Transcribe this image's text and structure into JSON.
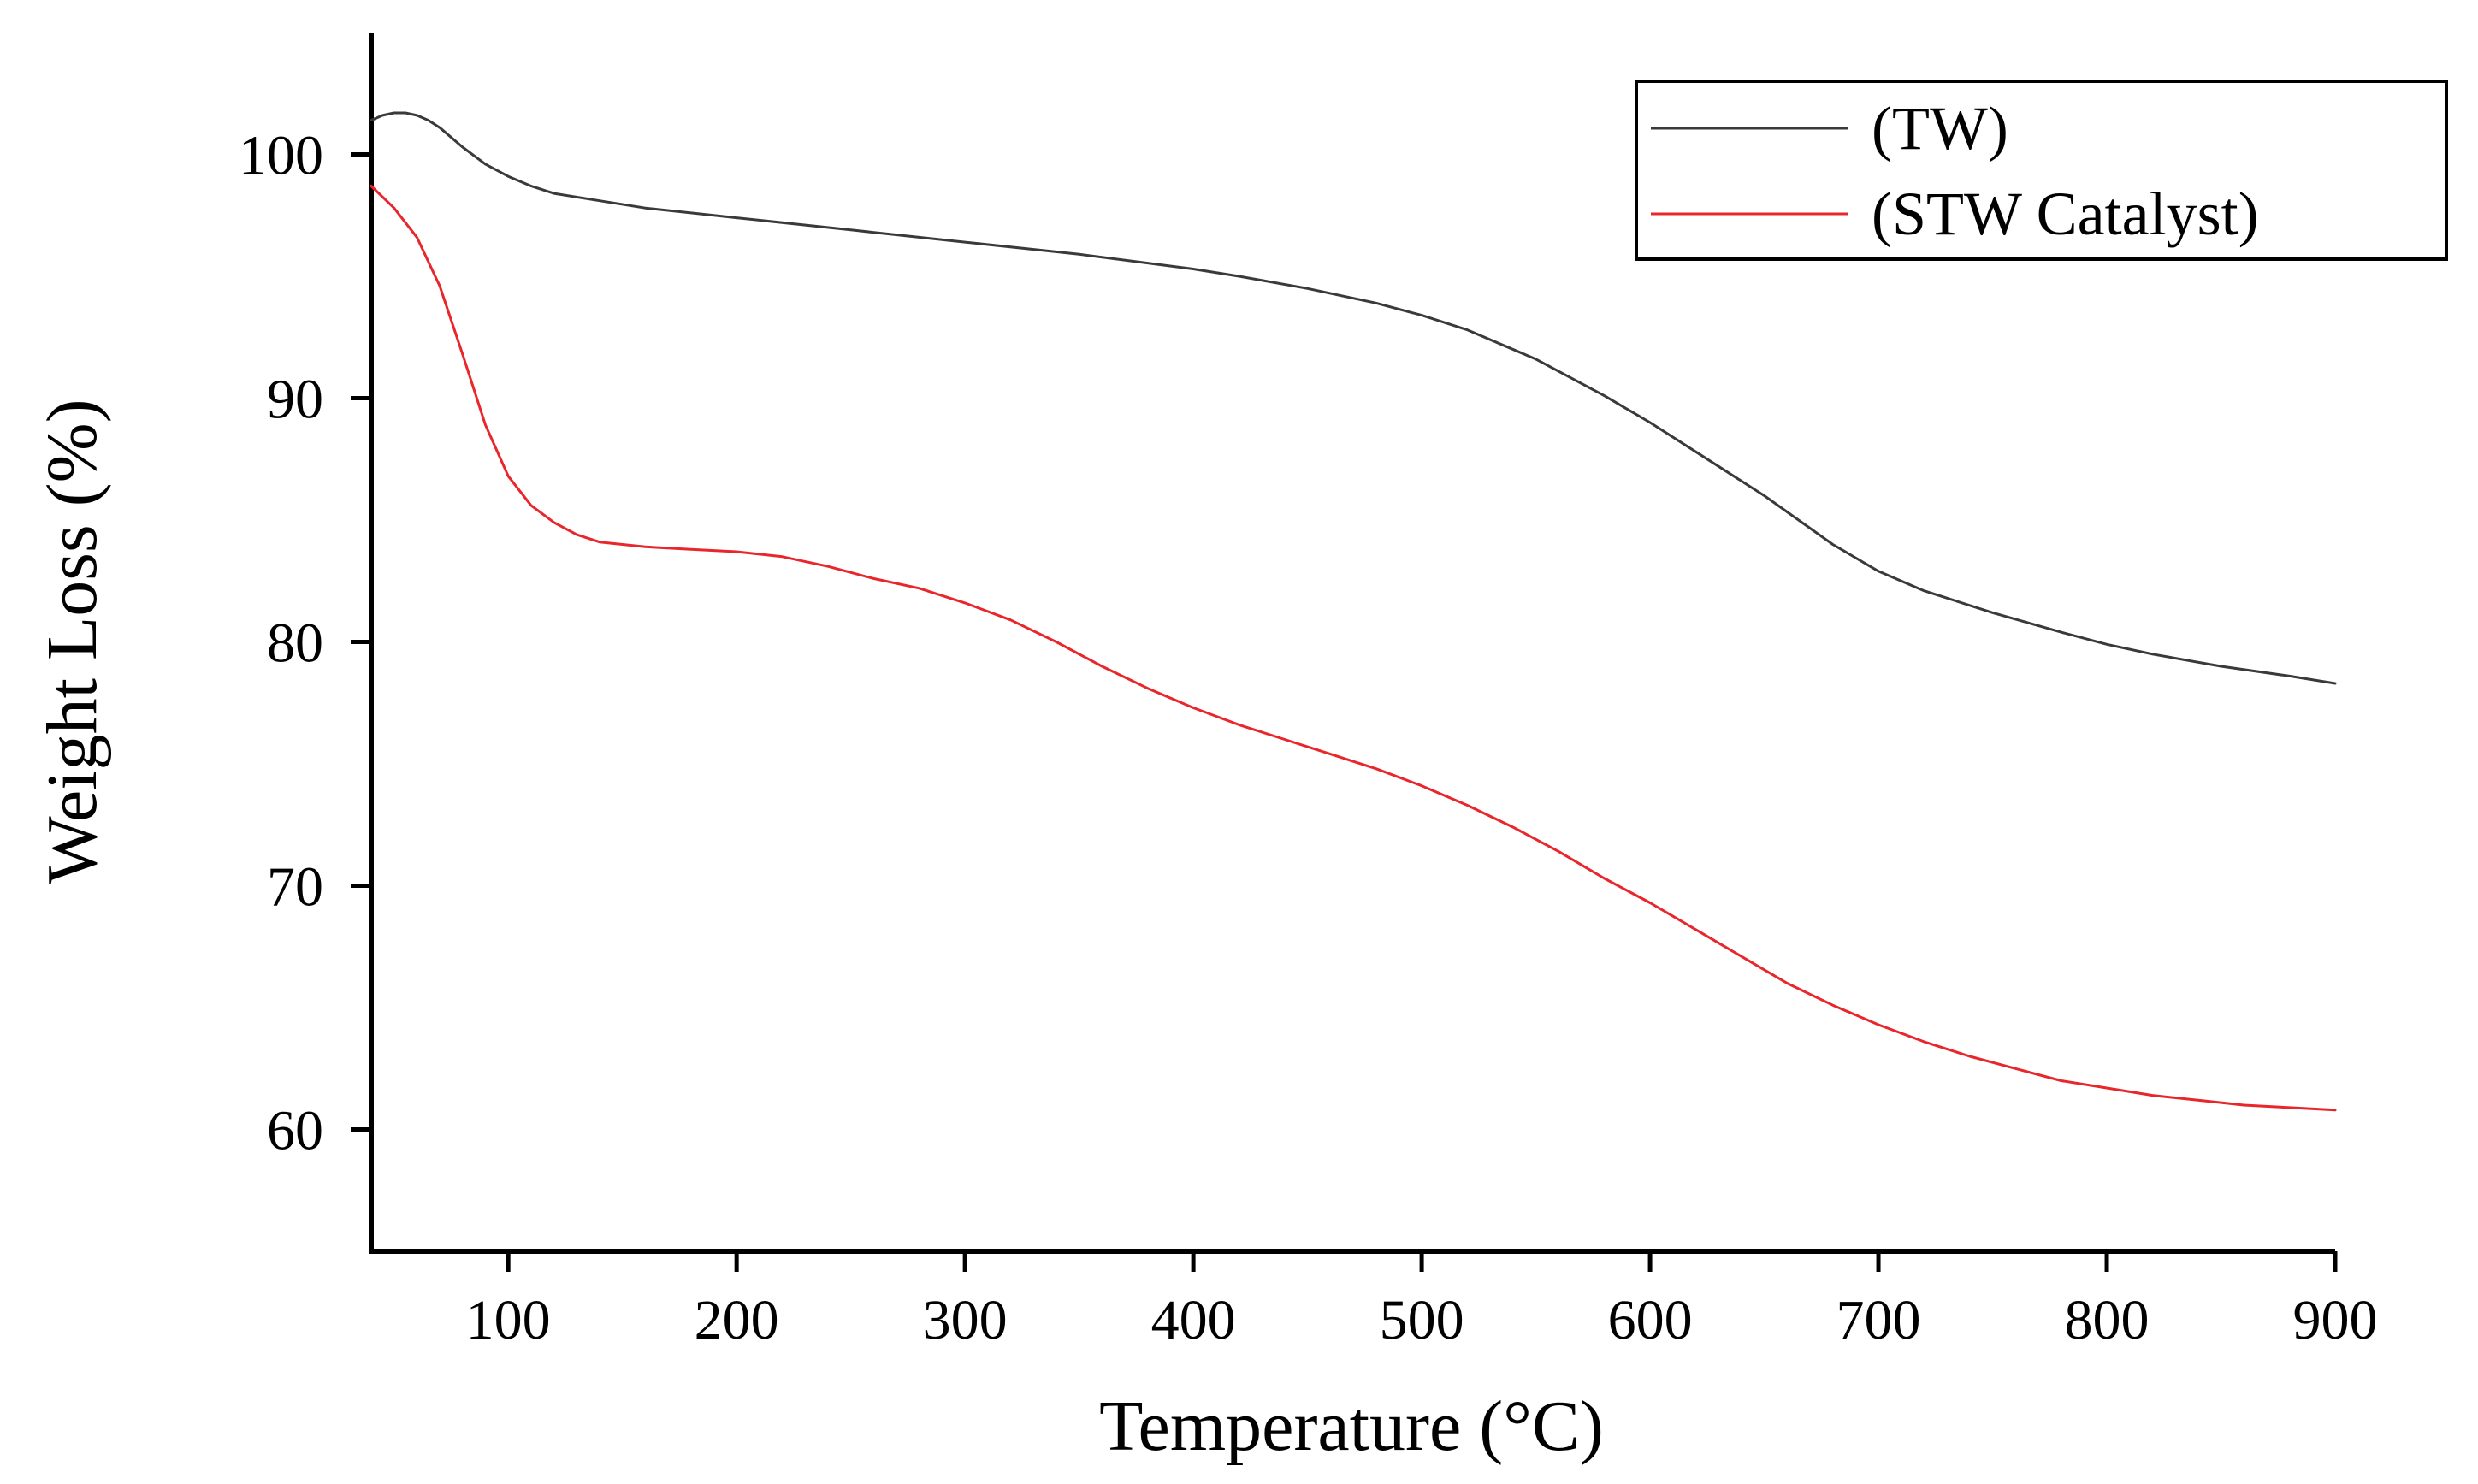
{
  "chart_data": {
    "type": "line",
    "title": "",
    "xlabel": "Temperature (°C)",
    "ylabel": "Weight Loss (%)",
    "xlim": [
      40,
      900
    ],
    "ylim": [
      55,
      105
    ],
    "xticks": [
      100,
      200,
      300,
      400,
      500,
      600,
      700,
      800,
      900
    ],
    "yticks": [
      60,
      70,
      80,
      90,
      100
    ],
    "grid": false,
    "legend_position": "top-right",
    "series": [
      {
        "name": "(TW)",
        "color": "#3a3a3a",
        "x": [
          40,
          45,
          50,
          55,
          60,
          65,
          70,
          80,
          90,
          100,
          110,
          120,
          140,
          160,
          180,
          200,
          250,
          300,
          350,
          400,
          420,
          450,
          480,
          500,
          520,
          550,
          580,
          600,
          620,
          650,
          680,
          700,
          720,
          750,
          780,
          800,
          820,
          850,
          880,
          900
        ],
        "y": [
          101.4,
          101.6,
          101.7,
          101.7,
          101.6,
          101.4,
          101.1,
          100.3,
          99.6,
          99.1,
          98.7,
          98.4,
          98.1,
          97.8,
          97.6,
          97.4,
          96.9,
          96.4,
          95.9,
          95.3,
          95.0,
          94.5,
          93.9,
          93.4,
          92.8,
          91.6,
          90.1,
          89.0,
          87.8,
          86.0,
          84.0,
          82.9,
          82.1,
          81.2,
          80.4,
          79.9,
          79.5,
          79.0,
          78.6,
          78.3
        ]
      },
      {
        "name": "(STW Catalyst)",
        "color": "#e8262b",
        "x": [
          40,
          50,
          60,
          70,
          80,
          90,
          100,
          110,
          120,
          130,
          140,
          150,
          160,
          180,
          200,
          220,
          240,
          260,
          280,
          300,
          320,
          340,
          360,
          380,
          400,
          420,
          440,
          460,
          480,
          500,
          520,
          540,
          560,
          580,
          600,
          620,
          640,
          660,
          680,
          700,
          720,
          740,
          760,
          780,
          800,
          820,
          840,
          860,
          880,
          900
        ],
        "y": [
          98.7,
          97.8,
          96.6,
          94.6,
          91.8,
          88.9,
          86.8,
          85.6,
          84.9,
          84.4,
          84.1,
          84.0,
          83.9,
          83.8,
          83.7,
          83.5,
          83.1,
          82.6,
          82.2,
          81.6,
          80.9,
          80.0,
          79.0,
          78.1,
          77.3,
          76.6,
          76.0,
          75.4,
          74.8,
          74.1,
          73.3,
          72.4,
          71.4,
          70.3,
          69.3,
          68.2,
          67.1,
          66.0,
          65.1,
          64.3,
          63.6,
          63.0,
          62.5,
          62.0,
          61.7,
          61.4,
          61.2,
          61.0,
          60.9,
          60.8
        ]
      }
    ]
  }
}
